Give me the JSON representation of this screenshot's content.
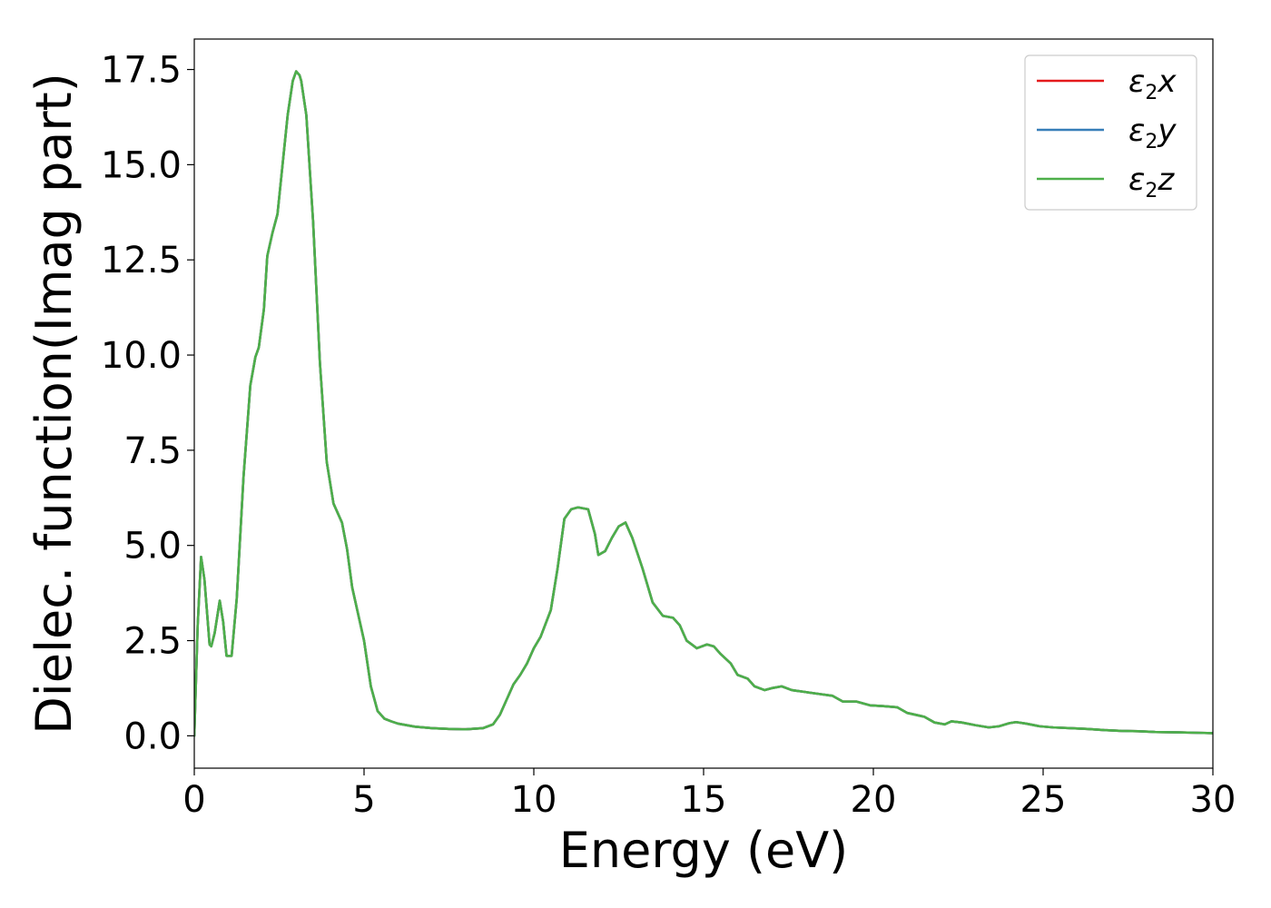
{
  "chart_data": {
    "type": "line",
    "title": "",
    "xlabel": "Energy (eV)",
    "ylabel": "Dielec. function(Imag part)",
    "xlim": [
      0,
      30
    ],
    "ylim": [
      -0.85,
      18.3
    ],
    "grid": false,
    "legend_position": "top-right",
    "x_ticks": [
      "0",
      "5",
      "10",
      "15",
      "20",
      "25",
      "30"
    ],
    "y_ticks": [
      "0.0",
      "2.5",
      "5.0",
      "7.5",
      "10.0",
      "12.5",
      "15.0",
      "17.5"
    ],
    "x": [
      0.0,
      0.1,
      0.2,
      0.3,
      0.45,
      0.5,
      0.6,
      0.75,
      0.85,
      0.95,
      1.1,
      1.25,
      1.45,
      1.65,
      1.8,
      1.9,
      2.05,
      2.15,
      2.3,
      2.45,
      2.6,
      2.75,
      2.9,
      3.0,
      3.1,
      3.15,
      3.3,
      3.5,
      3.7,
      3.9,
      4.1,
      4.2,
      4.35,
      4.5,
      4.65,
      4.8,
      5.0,
      5.2,
      5.4,
      5.6,
      5.8,
      6.0,
      6.5,
      7.0,
      7.5,
      8.0,
      8.5,
      8.8,
      9.0,
      9.2,
      9.4,
      9.6,
      9.8,
      10.0,
      10.2,
      10.5,
      10.7,
      10.9,
      11.1,
      11.3,
      11.6,
      11.8,
      11.9,
      12.1,
      12.3,
      12.5,
      12.7,
      12.9,
      13.2,
      13.5,
      13.8,
      14.1,
      14.3,
      14.5,
      14.8,
      15.1,
      15.3,
      15.5,
      15.8,
      16.0,
      16.3,
      16.5,
      16.8,
      17.0,
      17.3,
      17.6,
      18.0,
      18.4,
      18.8,
      19.1,
      19.5,
      19.9,
      20.3,
      20.7,
      21.0,
      21.5,
      21.8,
      22.1,
      22.3,
      22.6,
      23.0,
      23.4,
      23.7,
      24.0,
      24.2,
      24.5,
      24.9,
      25.3,
      25.8,
      26.3,
      26.8,
      27.3,
      27.8,
      28.3,
      29.0,
      29.5,
      30.0
    ],
    "series": [
      {
        "name": "ε2x",
        "color": "#e41a1c",
        "values": [
          0.0,
          2.9,
          4.7,
          4.1,
          2.4,
          2.35,
          2.7,
          3.55,
          3.0,
          2.1,
          2.1,
          3.6,
          6.8,
          9.2,
          9.95,
          10.2,
          11.2,
          12.6,
          13.2,
          13.7,
          15.0,
          16.3,
          17.2,
          17.45,
          17.35,
          17.2,
          16.3,
          13.5,
          9.8,
          7.2,
          6.1,
          5.9,
          5.6,
          4.9,
          3.9,
          3.3,
          2.5,
          1.3,
          0.65,
          0.45,
          0.38,
          0.32,
          0.24,
          0.2,
          0.18,
          0.17,
          0.2,
          0.3,
          0.55,
          0.95,
          1.35,
          1.6,
          1.9,
          2.3,
          2.6,
          3.3,
          4.4,
          5.7,
          5.95,
          6.0,
          5.95,
          5.3,
          4.75,
          4.85,
          5.2,
          5.5,
          5.6,
          5.2,
          4.4,
          3.5,
          3.15,
          3.1,
          2.9,
          2.5,
          2.3,
          2.4,
          2.35,
          2.15,
          1.9,
          1.6,
          1.5,
          1.3,
          1.2,
          1.25,
          1.3,
          1.2,
          1.15,
          1.1,
          1.05,
          0.9,
          0.9,
          0.8,
          0.78,
          0.75,
          0.6,
          0.5,
          0.35,
          0.3,
          0.38,
          0.35,
          0.28,
          0.22,
          0.25,
          0.33,
          0.36,
          0.32,
          0.25,
          0.22,
          0.2,
          0.18,
          0.15,
          0.13,
          0.12,
          0.1,
          0.09,
          0.08,
          0.07
        ]
      },
      {
        "name": "ε2y",
        "color": "#377eb8",
        "values": [
          0.0,
          2.9,
          4.7,
          4.1,
          2.4,
          2.35,
          2.7,
          3.55,
          3.0,
          2.1,
          2.1,
          3.6,
          6.8,
          9.2,
          9.95,
          10.2,
          11.2,
          12.6,
          13.2,
          13.7,
          15.0,
          16.3,
          17.2,
          17.45,
          17.35,
          17.2,
          16.3,
          13.5,
          9.8,
          7.2,
          6.1,
          5.9,
          5.6,
          4.9,
          3.9,
          3.3,
          2.5,
          1.3,
          0.65,
          0.45,
          0.38,
          0.32,
          0.24,
          0.2,
          0.18,
          0.17,
          0.2,
          0.3,
          0.55,
          0.95,
          1.35,
          1.6,
          1.9,
          2.3,
          2.6,
          3.3,
          4.4,
          5.7,
          5.95,
          6.0,
          5.95,
          5.3,
          4.75,
          4.85,
          5.2,
          5.5,
          5.6,
          5.2,
          4.4,
          3.5,
          3.15,
          3.1,
          2.9,
          2.5,
          2.3,
          2.4,
          2.35,
          2.15,
          1.9,
          1.6,
          1.5,
          1.3,
          1.2,
          1.25,
          1.3,
          1.2,
          1.15,
          1.1,
          1.05,
          0.9,
          0.9,
          0.8,
          0.78,
          0.75,
          0.6,
          0.5,
          0.35,
          0.3,
          0.38,
          0.35,
          0.28,
          0.22,
          0.25,
          0.33,
          0.36,
          0.32,
          0.25,
          0.22,
          0.2,
          0.18,
          0.15,
          0.13,
          0.12,
          0.1,
          0.09,
          0.08,
          0.07
        ]
      },
      {
        "name": "ε2z",
        "color": "#4daf4a",
        "values": [
          0.0,
          2.9,
          4.7,
          4.1,
          2.4,
          2.35,
          2.7,
          3.55,
          3.0,
          2.1,
          2.1,
          3.6,
          6.8,
          9.2,
          9.95,
          10.2,
          11.2,
          12.6,
          13.2,
          13.7,
          15.0,
          16.3,
          17.2,
          17.45,
          17.35,
          17.2,
          16.3,
          13.5,
          9.8,
          7.2,
          6.1,
          5.9,
          5.6,
          4.9,
          3.9,
          3.3,
          2.5,
          1.3,
          0.65,
          0.45,
          0.38,
          0.32,
          0.24,
          0.2,
          0.18,
          0.17,
          0.2,
          0.3,
          0.55,
          0.95,
          1.35,
          1.6,
          1.9,
          2.3,
          2.6,
          3.3,
          4.4,
          5.7,
          5.95,
          6.0,
          5.95,
          5.3,
          4.75,
          4.85,
          5.2,
          5.5,
          5.6,
          5.2,
          4.4,
          3.5,
          3.15,
          3.1,
          2.9,
          2.5,
          2.3,
          2.4,
          2.35,
          2.15,
          1.9,
          1.6,
          1.5,
          1.3,
          1.2,
          1.25,
          1.3,
          1.2,
          1.15,
          1.1,
          1.05,
          0.9,
          0.9,
          0.8,
          0.78,
          0.75,
          0.6,
          0.5,
          0.35,
          0.3,
          0.38,
          0.35,
          0.28,
          0.22,
          0.25,
          0.33,
          0.36,
          0.32,
          0.25,
          0.22,
          0.2,
          0.18,
          0.15,
          0.13,
          0.12,
          0.1,
          0.09,
          0.08,
          0.07
        ]
      }
    ],
    "legend": [
      {
        "symbol": "ε",
        "sub": "2",
        "suffix": "x"
      },
      {
        "symbol": "ε",
        "sub": "2",
        "suffix": "y"
      },
      {
        "symbol": "ε",
        "sub": "2",
        "suffix": "z"
      }
    ]
  }
}
